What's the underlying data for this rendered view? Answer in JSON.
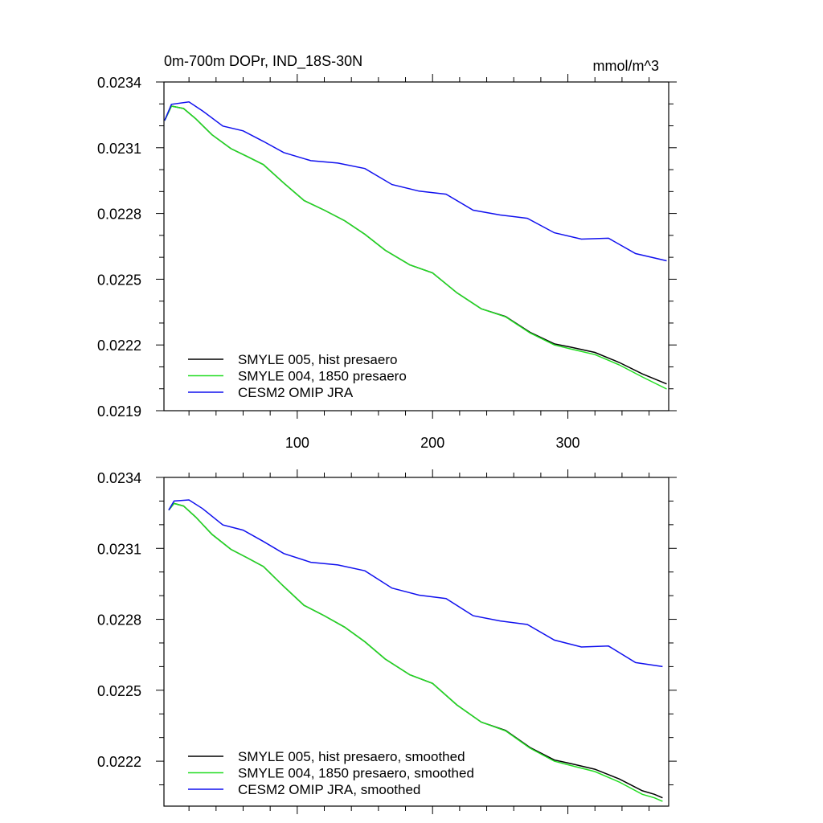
{
  "chart_data": [
    {
      "type": "line",
      "title": "0m-700m DOPr, IND_18S-30N",
      "units": "mmol/m^3",
      "xlim": [
        1.5,
        374.5
      ],
      "ylim": [
        0.0219,
        0.0234
      ],
      "xticks": [
        100,
        200,
        300
      ],
      "xtick_labels": [
        "100",
        "200",
        "300"
      ],
      "x_minor_step": 20,
      "yticks": [
        0.0219,
        0.0222,
        0.0225,
        0.0228,
        0.0231,
        0.0234
      ],
      "ytick_labels": [
        "0.0219",
        "0.0222",
        "0.0225",
        "0.0228",
        "0.0231",
        "0.0234"
      ],
      "y_minor_step": 0.0001,
      "legend_position": "bottom-left",
      "series": [
        {
          "name": "SMYLE 005, hist presaero",
          "color": "#000000",
          "x": [
            2,
            7,
            16,
            25,
            37,
            51,
            63,
            75,
            90,
            105,
            120,
            135,
            150,
            165,
            183,
            200,
            218,
            236,
            254,
            272,
            290,
            302,
            320,
            338,
            355,
            373
          ],
          "y": [
            0.023224,
            0.02329,
            0.023279,
            0.023232,
            0.023159,
            0.023096,
            0.02306,
            0.023023,
            0.022939,
            0.022859,
            0.022815,
            0.022767,
            0.022705,
            0.022632,
            0.022566,
            0.022529,
            0.022438,
            0.022365,
            0.02233,
            0.022258,
            0.022205,
            0.02219,
            0.022166,
            0.02212,
            0.022068,
            0.022022
          ]
        },
        {
          "name": "SMYLE 004, 1850 presaero",
          "color": "#22dd22",
          "x": [
            2,
            7,
            16,
            25,
            37,
            51,
            63,
            75,
            90,
            105,
            120,
            135,
            150,
            165,
            183,
            200,
            218,
            236,
            254,
            272,
            290,
            302,
            320,
            338,
            355,
            373
          ],
          "y": [
            0.023224,
            0.02329,
            0.023279,
            0.023232,
            0.023159,
            0.023096,
            0.02306,
            0.023023,
            0.022939,
            0.022859,
            0.022815,
            0.022767,
            0.022705,
            0.022632,
            0.022566,
            0.022529,
            0.022438,
            0.022365,
            0.022328,
            0.022255,
            0.0222,
            0.022182,
            0.022156,
            0.022109,
            0.022054,
            0.021999
          ]
        },
        {
          "name": "CESM2 OMIP JRA",
          "color": "#1010ee",
          "x": [
            2,
            7,
            20,
            30,
            45,
            60,
            75,
            90,
            110,
            130,
            150,
            170,
            190,
            210,
            230,
            250,
            270,
            290,
            310,
            330,
            350,
            373
          ],
          "y": [
            0.023224,
            0.023298,
            0.023309,
            0.023268,
            0.023199,
            0.023177,
            0.023129,
            0.023078,
            0.023041,
            0.02303,
            0.023005,
            0.022932,
            0.022902,
            0.022888,
            0.022815,
            0.022793,
            0.022778,
            0.022712,
            0.022683,
            0.022687,
            0.022617,
            0.022584
          ]
        }
      ]
    },
    {
      "type": "line",
      "xlim": [
        1.5,
        374.5
      ],
      "ylim": [
        0.02201,
        0.0234
      ],
      "xticks": [
        100,
        200,
        300
      ],
      "x_minor_step": 20,
      "yticks": [
        0.0222,
        0.0225,
        0.0228,
        0.0231,
        0.0234
      ],
      "ytick_labels": [
        "0.0222",
        "0.0225",
        "0.0228",
        "0.0231",
        "0.0234"
      ],
      "y_minor_step": 0.0001,
      "legend_position": "bottom-left",
      "series": [
        {
          "name": "SMYLE 005, hist presaero, smoothed",
          "color": "#000000",
          "x": [
            5,
            9,
            16,
            25,
            37,
            51,
            63,
            75,
            90,
            105,
            120,
            135,
            150,
            165,
            183,
            200,
            218,
            236,
            254,
            272,
            290,
            302,
            320,
            338,
            355,
            364,
            370
          ],
          "y": [
            0.023262,
            0.02329,
            0.023279,
            0.023232,
            0.023159,
            0.023096,
            0.02306,
            0.023023,
            0.022939,
            0.022859,
            0.022815,
            0.022767,
            0.022705,
            0.022632,
            0.022566,
            0.022529,
            0.022438,
            0.022365,
            0.02233,
            0.022258,
            0.022205,
            0.02219,
            0.022166,
            0.022125,
            0.022075,
            0.02206,
            0.022045
          ]
        },
        {
          "name": "SMYLE 004, 1850 presaero, smoothed",
          "color": "#22dd22",
          "x": [
            5,
            9,
            16,
            25,
            37,
            51,
            63,
            75,
            90,
            105,
            120,
            135,
            150,
            165,
            183,
            200,
            218,
            236,
            254,
            272,
            290,
            302,
            320,
            338,
            355,
            364,
            370
          ],
          "y": [
            0.023262,
            0.02329,
            0.023279,
            0.023232,
            0.023159,
            0.023096,
            0.02306,
            0.023023,
            0.022939,
            0.022859,
            0.022815,
            0.022767,
            0.022705,
            0.022632,
            0.022566,
            0.022529,
            0.022438,
            0.022365,
            0.022328,
            0.022255,
            0.0222,
            0.022182,
            0.022156,
            0.022112,
            0.02206,
            0.022045,
            0.02203
          ]
        },
        {
          "name": "CESM2 OMIP JRA, smoothed",
          "color": "#1010ee",
          "x": [
            5,
            9,
            20,
            30,
            45,
            60,
            75,
            90,
            110,
            130,
            150,
            170,
            190,
            210,
            230,
            250,
            270,
            290,
            310,
            330,
            350,
            370
          ],
          "y": [
            0.023262,
            0.0233,
            0.023305,
            0.023268,
            0.023199,
            0.023177,
            0.023129,
            0.023078,
            0.023041,
            0.02303,
            0.023005,
            0.022932,
            0.022902,
            0.022888,
            0.022815,
            0.022793,
            0.022778,
            0.022712,
            0.022683,
            0.022687,
            0.022617,
            0.0226
          ]
        }
      ]
    }
  ]
}
